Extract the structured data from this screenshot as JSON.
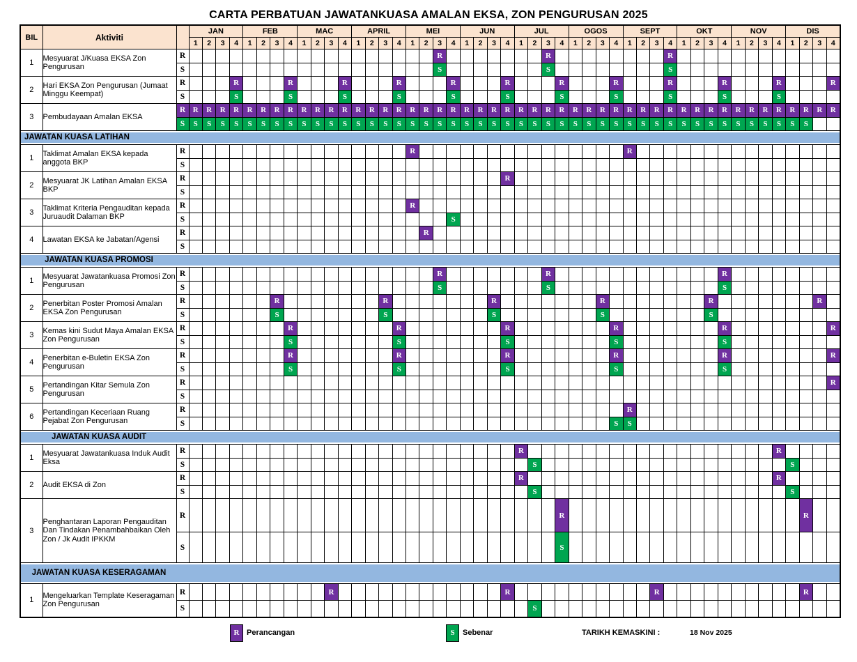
{
  "title": "CARTA PERBATUAN JAWATANKUASA AMALAN EKSA, ZON PENGURUSAN 2025",
  "colors": {
    "header_bg": "#fbe3cf",
    "section_bg": "#93b7e0",
    "perancangan_fill": "#7030a0",
    "sebenar_fill": "#00a550",
    "border": "#000000"
  },
  "legend": {
    "r_symbol": "R",
    "r_label": "Perancangan",
    "s_symbol": "S",
    "s_label": "Sebenar",
    "updated_label": "TARIKH KEMASKINI :",
    "updated_value": "18 Nov 2025"
  },
  "chart_data": {
    "type": "table",
    "columns": {
      "bil": "BIL",
      "activity": "Aktiviti"
    },
    "row_symbols": {
      "r": "R",
      "s": "S"
    },
    "months": [
      {
        "name": "JAN",
        "weeks": [
          "1",
          "2",
          "3",
          "4"
        ]
      },
      {
        "name": "FEB",
        "weeks": [
          "1",
          "2",
          "3",
          "4"
        ]
      },
      {
        "name": "MAC",
        "weeks": [
          "1",
          "2",
          "3",
          "4"
        ]
      },
      {
        "name": "APRIL",
        "weeks": [
          "1",
          "2",
          "3",
          "4"
        ]
      },
      {
        "name": "MEI",
        "weeks": [
          "1",
          "2",
          "3",
          "4"
        ]
      },
      {
        "name": "JUN",
        "weeks": [
          "1",
          "2",
          "3",
          "4"
        ]
      },
      {
        "name": "JUL",
        "weeks": [
          "1",
          "2",
          "3",
          "4"
        ]
      },
      {
        "name": "OGOS",
        "weeks": [
          "1",
          "2",
          "3",
          "4"
        ]
      },
      {
        "name": "SEPT",
        "weeks": [
          "1",
          "2",
          "3",
          "4"
        ]
      },
      {
        "name": "OKT",
        "weeks": [
          "1",
          "2",
          "3",
          "4"
        ]
      },
      {
        "name": "NOV",
        "weeks": [
          "1",
          "2",
          "3",
          "4"
        ]
      },
      {
        "name": "DIS",
        "weeks": [
          "1",
          "2",
          "3",
          "4"
        ]
      }
    ],
    "sections": [
      {
        "header": null,
        "rows": [
          {
            "bil": "1",
            "label": "Mesyuarat J/Kuasa EKSA Zon Pengurusan",
            "r": [
              19,
              27,
              36
            ],
            "s": [
              19,
              27,
              36
            ]
          },
          {
            "bil": "2",
            "label": "Hari EKSA Zon Pengurusan (Jumaat Minggu Keempat)",
            "r": [
              4,
              8,
              12,
              16,
              20,
              24,
              28,
              32,
              36,
              40,
              44,
              48
            ],
            "s": [
              4,
              8,
              12,
              16,
              20,
              24,
              28,
              32,
              36,
              40,
              44
            ]
          },
          {
            "bil": "3",
            "label": "Pembudayaan Amalan EKSA",
            "rs_label_filled": true,
            "r": [
              1,
              2,
              3,
              4,
              5,
              6,
              7,
              8,
              9,
              10,
              11,
              12,
              13,
              14,
              15,
              16,
              17,
              18,
              19,
              20,
              21,
              22,
              23,
              24,
              25,
              26,
              27,
              28,
              29,
              30,
              31,
              32,
              33,
              34,
              35,
              36,
              37,
              38,
              39,
              40,
              41,
              42,
              43,
              44,
              45,
              46,
              47,
              48
            ],
            "s": [
              1,
              2,
              3,
              4,
              5,
              6,
              7,
              8,
              9,
              10,
              11,
              12,
              13,
              14,
              15,
              16,
              17,
              18,
              19,
              20,
              21,
              22,
              23,
              24,
              25,
              26,
              27,
              28,
              29,
              30,
              31,
              32,
              33,
              34,
              35,
              36,
              37,
              38,
              39,
              40,
              41,
              42,
              43,
              44,
              45,
              46
            ]
          }
        ]
      },
      {
        "header": "JAWATAN KUASA LATIHAN",
        "align": "left",
        "rows": [
          {
            "bil": "1",
            "label": "Taklimat Amalan EKSA kepada anggota BKP",
            "r": [
              17,
              33
            ],
            "s": []
          },
          {
            "bil": "2",
            "label": "Mesyuarat JK Latihan Amalan EKSA BKP",
            "r": [
              24
            ],
            "s": []
          },
          {
            "bil": "3",
            "label": "Taklimat Kriteria Pengauditan kepada Juruaudit Dalaman BKP",
            "r": [
              17
            ],
            "s": [
              20
            ]
          },
          {
            "bil": "4",
            "label": "Lawatan EKSA ke Jabatan/Agensi",
            "r": [
              18
            ],
            "s": []
          }
        ]
      },
      {
        "header": "JAWATAN KUASA PROMOSI",
        "align": "center",
        "rows": [
          {
            "bil": "1",
            "label": "Mesyuarat Jawatankuasa Promosi Zon Pengurusan",
            "r": [
              19,
              27,
              40
            ],
            "s": [
              19,
              27,
              40
            ]
          },
          {
            "bil": "2",
            "label": "Penerbitan Poster Promosi Amalan EKSA Zon Pengurusan",
            "r": [
              7,
              15,
              23,
              31,
              39,
              47
            ],
            "s": [
              7,
              15,
              23,
              31,
              39
            ]
          },
          {
            "bil": "3",
            "label": "Kemas kini Sudut Maya Amalan EKSA Zon Pengurusan",
            "r": [
              8,
              16,
              24,
              32,
              40,
              48
            ],
            "s": [
              8,
              16,
              24,
              32,
              40
            ]
          },
          {
            "bil": "4",
            "label": "Penerbitan e-Buletin EKSA Zon Pengurusan",
            "r": [
              8,
              16,
              24,
              32,
              40,
              48
            ],
            "s": [
              8,
              16,
              24,
              32,
              40
            ]
          },
          {
            "bil": "5",
            "label": "Pertandingan Kitar Semula Zon Pengurusan",
            "r": [
              48
            ],
            "s": []
          },
          {
            "bil": "6",
            "label": "Pertandingan Keceriaan Ruang Pejabat Zon Pengurusan",
            "r": [
              33
            ],
            "s": [
              32,
              33
            ]
          }
        ]
      },
      {
        "header": "JAWATAN KUASA AUDIT",
        "align": "center",
        "rows": [
          {
            "bil": "1",
            "label": "Mesyuarat Jawatankuasa Induk Audit Eksa",
            "r": [
              25,
              44
            ],
            "s": [
              26,
              45
            ]
          },
          {
            "bil": "2",
            "label": "Audit EKSA di Zon",
            "r": [
              25,
              44
            ],
            "s": [
              26,
              45
            ]
          },
          {
            "bil": "3",
            "label": "Penghantaran Laporan Pengauditan Dan Tindakan Penambahbaikan Oleh Zon / Jk Audit IPKKM",
            "tall": true,
            "r": [
              28,
              46
            ],
            "s": [
              28
            ]
          }
        ]
      },
      {
        "header": "JAWATAN KUASA KESERAGAMAN",
        "align": "center",
        "two_line": true,
        "rows": [
          {
            "bil": "1",
            "label": "Mengeluarkan Template Keseragaman Zon Pengurusan",
            "k": true,
            "r": [
              11,
              24,
              35,
              46
            ],
            "s": [
              26
            ]
          }
        ]
      }
    ]
  }
}
